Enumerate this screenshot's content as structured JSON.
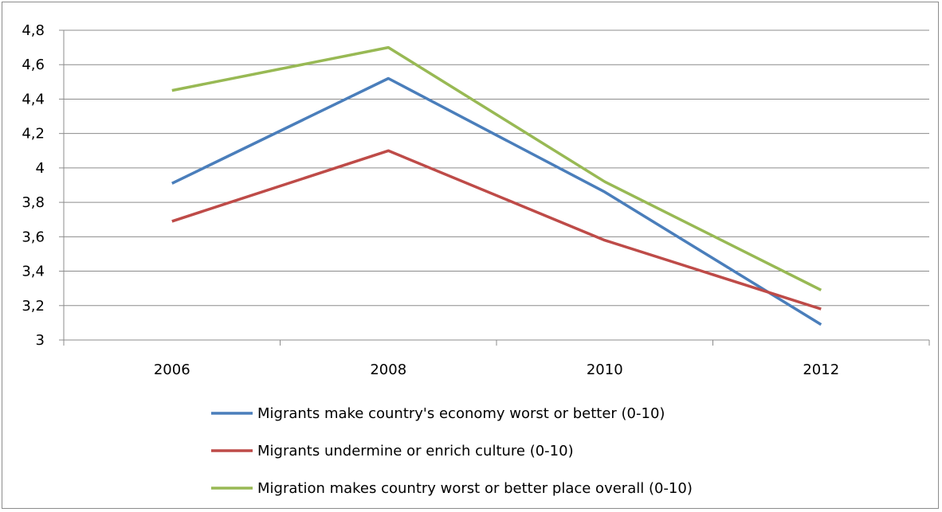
{
  "chart_data": {
    "type": "line",
    "title": "",
    "xlabel": "",
    "ylabel": "",
    "categories": [
      "2006",
      "2008",
      "2010",
      "2012"
    ],
    "ylim": [
      3,
      4.8
    ],
    "yticks": [
      "3",
      "3,2",
      "3,4",
      "3,6",
      "3,8",
      "4",
      "4,2",
      "4,4",
      "4,6",
      "4,8"
    ],
    "grid": true,
    "legend_position": "bottom",
    "series": [
      {
        "name": "Migrants make country's economy worst or better (0-10)",
        "color": "#4a7ebb",
        "values": [
          3.91,
          4.52,
          3.86,
          3.09
        ]
      },
      {
        "name": "Migrants undermine or enrich culture (0-10)",
        "color": "#be4b48",
        "values": [
          3.69,
          4.1,
          3.58,
          3.18
        ]
      },
      {
        "name": "Migration makes country worst or better place overall (0-10)",
        "color": "#98b954",
        "values": [
          4.45,
          4.7,
          3.92,
          3.29
        ]
      }
    ]
  }
}
